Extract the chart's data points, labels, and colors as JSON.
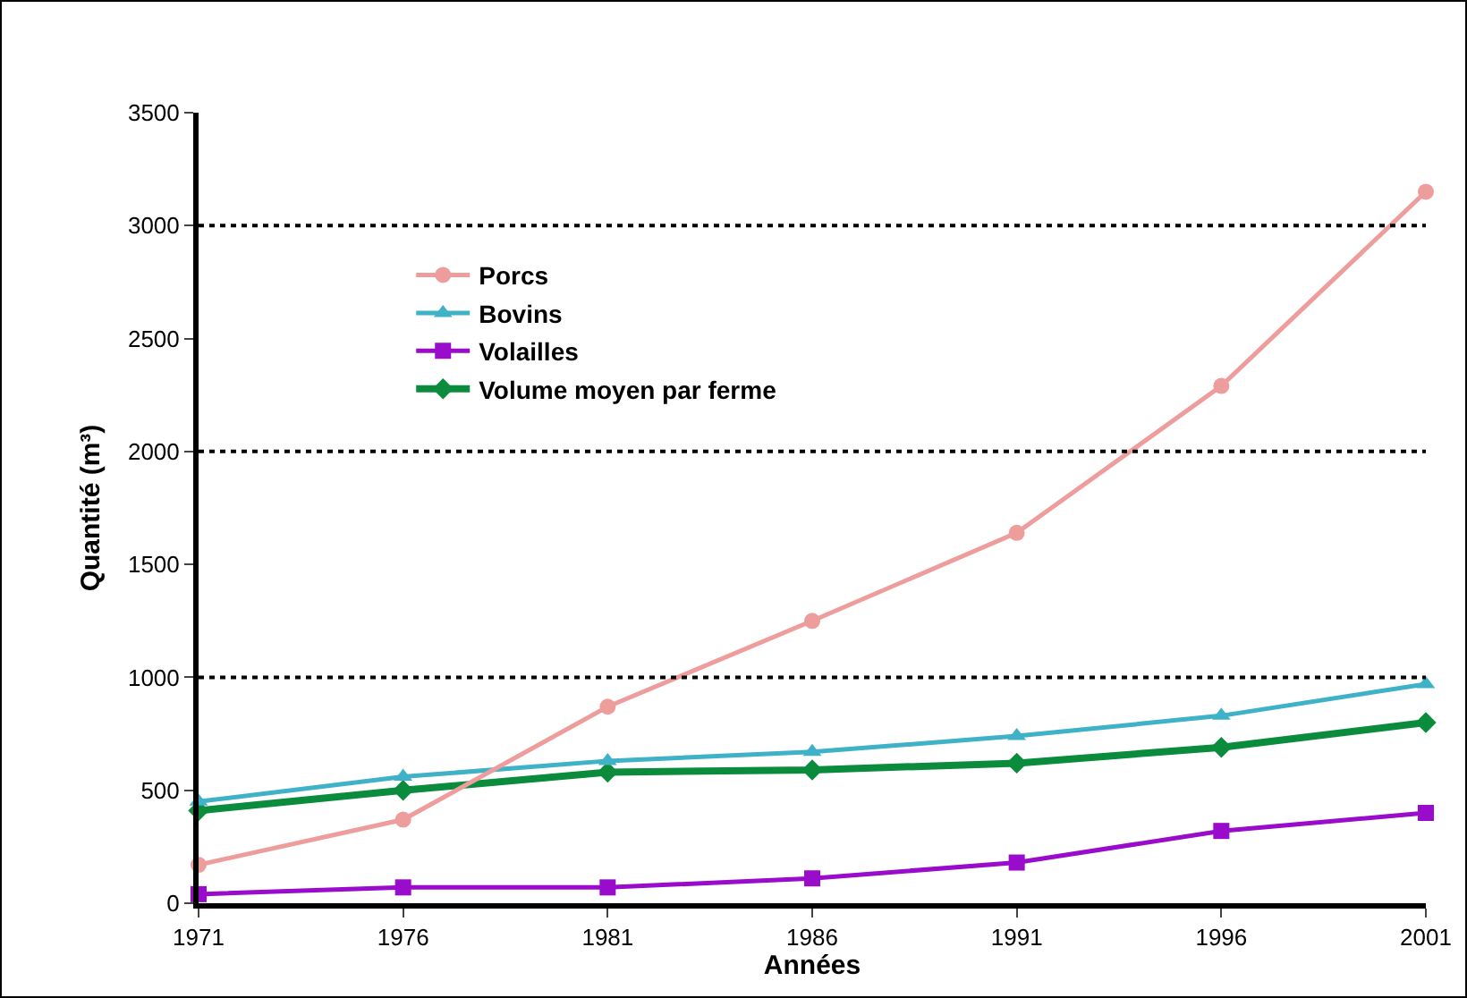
{
  "chart_data": {
    "type": "line",
    "xlabel": "Années",
    "ylabel": "Quantité (m³)",
    "x": [
      1971,
      1976,
      1981,
      1986,
      1991,
      1996,
      2001
    ],
    "xlim": [
      1971,
      2001
    ],
    "xticks": [
      1971,
      1976,
      1981,
      1986,
      1991,
      1996,
      2001
    ],
    "ylim": [
      0,
      3500
    ],
    "yticks": [
      0,
      500,
      1000,
      1500,
      2000,
      2500,
      3000,
      3500
    ],
    "grid": false,
    "legend": "top left",
    "line_style": "solid",
    "ref_lines": [
      {
        "axis": "y",
        "value": 1000,
        "color": "#000000",
        "line_style": "dotted"
      },
      {
        "axis": "y",
        "value": 2000,
        "color": "#000000",
        "line_style": "dotted"
      },
      {
        "axis": "y",
        "value": 3000,
        "color": "#000000",
        "line_style": "dotted"
      }
    ],
    "series": [
      {
        "name": "Porcs",
        "color": "#ee9d9d",
        "marker": "circle",
        "values": [
          170,
          370,
          870,
          1250,
          1640,
          2290,
          3150
        ]
      },
      {
        "name": "Bovins",
        "color": "#3fb2c8",
        "marker": "triangle",
        "values": [
          450,
          560,
          630,
          670,
          740,
          830,
          970
        ]
      },
      {
        "name": "Volailles",
        "color": "#9a0ccc",
        "marker": "square",
        "values": [
          40,
          70,
          70,
          110,
          180,
          320,
          400
        ]
      },
      {
        "name": "Volume moyen par ferme",
        "color": "#0a8c3c",
        "marker": "diamond",
        "values": [
          410,
          500,
          580,
          590,
          620,
          690,
          800
        ]
      }
    ]
  }
}
